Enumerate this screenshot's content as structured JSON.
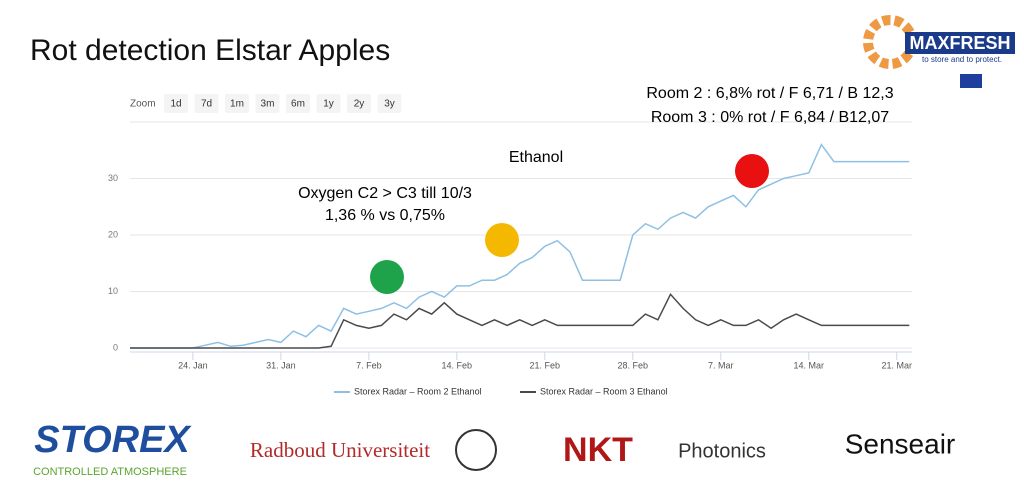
{
  "title": "Rot detection  Elstar Apples",
  "annotations": {
    "room2": "Room 2 : 6,8% rot / F 6,71 / B 12,3",
    "room3": "Room 3 : 0% rot  / F 6,84 / B12,07",
    "ethanol": "Ethanol",
    "oxygen": "Oxygen C2 > C3 till 10/3",
    "oxygen_values": "1,36 % vs 0,75%"
  },
  "zoom": {
    "label": "Zoom",
    "buttons": [
      "1d",
      "7d",
      "1m",
      "3m",
      "6m",
      "1y",
      "2y",
      "3y"
    ]
  },
  "logos": {
    "maxfresh": "MAXFRESH",
    "maxfresh_tagline": "to store and to protect.",
    "storex": "STOREX",
    "storex_tagline": "CONTROLLED ATMOSPHERE",
    "radboud": "Radboud Universiteit",
    "nkt": "NKT",
    "photonics": "Photonics",
    "senseair": "Senseair"
  },
  "chart_data": {
    "type": "line",
    "categories": [
      null,
      null,
      null,
      null,
      null,
      "24. Jan",
      null,
      null,
      null,
      null,
      null,
      null,
      "31. Jan",
      null,
      null,
      null,
      null,
      null,
      null,
      "7. Feb",
      null,
      null,
      null,
      null,
      null,
      null,
      "14. Feb",
      null,
      null,
      null,
      null,
      null,
      null,
      "21. Feb",
      null,
      null,
      null,
      null,
      null,
      null,
      "28. Feb",
      null,
      null,
      null,
      null,
      null,
      null,
      "7. Mar",
      null,
      null,
      null,
      null,
      null,
      null,
      "14. Mar",
      null,
      null,
      null,
      null,
      null,
      null,
      "21. Mar",
      null
    ],
    "series": [
      {
        "name": "Storex Radar – Room 2 Ethanol",
        "color": "#8fc0e3",
        "values": [
          0,
          0,
          0,
          0,
          0,
          0,
          0.5,
          1,
          0.3,
          0.5,
          1,
          1.5,
          1,
          3,
          2,
          4,
          3,
          7,
          6,
          6.5,
          7,
          8,
          7,
          9,
          10,
          9,
          11,
          11,
          12,
          12,
          13,
          15,
          16,
          18,
          19,
          17,
          12,
          12,
          12,
          12,
          20,
          22,
          21,
          23,
          24,
          23,
          25,
          26,
          27,
          25,
          28,
          29,
          30,
          30.5,
          31,
          36,
          33,
          33,
          33,
          33,
          33,
          33,
          33
        ]
      },
      {
        "name": "Storex Radar – Room 3 Ethanol",
        "color": "#4a4a4a",
        "values": [
          0,
          0,
          0,
          0,
          0,
          0,
          0,
          0,
          0,
          0,
          0,
          0,
          0,
          0,
          0,
          0,
          0.3,
          5,
          4,
          3.5,
          4,
          6,
          5,
          7,
          6,
          8,
          6,
          5,
          4,
          5,
          4,
          5,
          4,
          5,
          4,
          4,
          4,
          4,
          4,
          4,
          4,
          6,
          5,
          9.5,
          7,
          5,
          4,
          5,
          4,
          4,
          5,
          3.5,
          5,
          6,
          5,
          4,
          4,
          4,
          4,
          4,
          4,
          4,
          4
        ]
      }
    ],
    "ylim": [
      0,
      40
    ],
    "yticks": [
      0,
      10,
      20,
      30
    ],
    "grid": true
  }
}
